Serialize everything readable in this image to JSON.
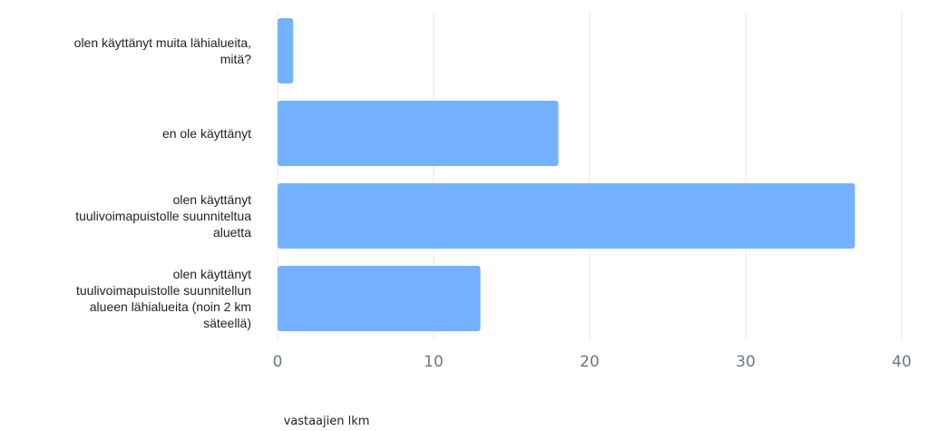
{
  "chart_data": {
    "type": "bar",
    "orientation": "horizontal",
    "categories": [
      [
        "olen käyttänyt muita lähialueita,",
        "mitä?"
      ],
      [
        "en ole käyttänyt"
      ],
      [
        "olen käyttänyt",
        "tuulivoimapuistolle suunniteltua",
        "aluetta"
      ],
      [
        "olen käyttänyt",
        "tuulivoimapuistolle suunnitellun",
        "alueen lähialueita (noin 2 km",
        "säteellä)"
      ]
    ],
    "values": [
      1,
      18,
      37,
      13
    ],
    "xlabel": "vastaajien lkm",
    "xlim": [
      0,
      40
    ],
    "xticks": [
      0,
      10,
      20,
      30,
      40
    ],
    "grid": true,
    "bar_color": "#74b2ff"
  }
}
